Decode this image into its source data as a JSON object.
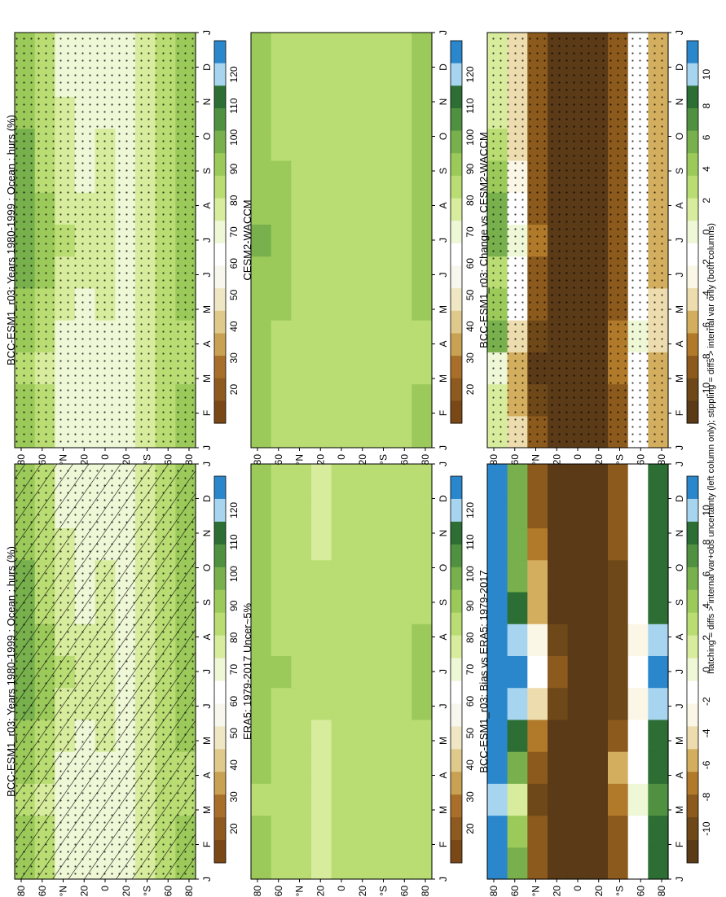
{
  "chart_data": [
    {
      "type": "heatmap",
      "title": "BCC-ESM1_r03: Years 1980-1999 : Ocean : hurs (%)",
      "x_ticks": [
        "J",
        "F",
        "M",
        "A",
        "M",
        "J",
        "J",
        "A",
        "S",
        "O",
        "N",
        "D",
        "J"
      ],
      "y_ticks": [
        "80",
        "60",
        "°N",
        "20",
        "0",
        "20",
        "°S",
        "60",
        "80"
      ],
      "colorbar_labels": [
        "120",
        "110",
        "100",
        "90",
        "80",
        "70",
        "60",
        "50",
        "40",
        "30",
        "20"
      ],
      "field": [
        [
          90,
          88,
          86,
          88,
          92,
          95,
          98,
          97,
          95,
          93,
          91,
          90,
          90
        ],
        [
          82,
          80,
          78,
          80,
          84,
          88,
          90,
          89,
          86,
          84,
          82,
          82,
          82
        ],
        [
          73,
          72,
          71,
          72,
          75,
          78,
          80,
          79,
          77,
          76,
          74,
          73,
          73
        ],
        [
          70,
          69,
          69,
          70,
          72,
          74,
          75,
          74,
          73,
          72,
          71,
          70,
          70
        ],
        [
          72,
          72,
          73,
          73,
          74,
          74,
          74,
          74,
          74,
          74,
          73,
          72,
          72
        ],
        [
          71,
          72,
          73,
          73,
          73,
          72,
          72,
          72,
          72,
          72,
          72,
          71,
          71
        ],
        [
          74,
          75,
          76,
          76,
          75,
          74,
          74,
          74,
          74,
          74,
          74,
          74,
          74
        ],
        [
          84,
          84,
          85,
          85,
          85,
          86,
          86,
          86,
          85,
          85,
          84,
          84,
          84
        ],
        [
          88,
          87,
          86,
          86,
          87,
          89,
          90,
          89,
          88,
          87,
          88,
          88,
          88
        ]
      ],
      "hatching": "diffs > internal var+obs uncertainty",
      "stippling": "diffs > internal var only"
    },
    {
      "type": "heatmap",
      "title": "BCC-ESM1_r03: Years 1980-1999 : Ocean : hurs (%)",
      "x_ticks": [
        "J",
        "F",
        "M",
        "A",
        "M",
        "J",
        "J",
        "A",
        "S",
        "O",
        "N",
        "D",
        "J"
      ],
      "y_ticks": [
        "80",
        "60",
        "°N",
        "20",
        "0",
        "20",
        "°S",
        "60",
        "80"
      ],
      "colorbar_labels": [
        "120",
        "110",
        "100",
        "90",
        "80",
        "70",
        "60",
        "50",
        "40",
        "30",
        "20"
      ],
      "field": [
        [
          90,
          88,
          86,
          88,
          92,
          95,
          98,
          97,
          95,
          93,
          91,
          90,
          90
        ],
        [
          82,
          80,
          78,
          80,
          84,
          88,
          90,
          89,
          86,
          84,
          82,
          82,
          82
        ],
        [
          73,
          72,
          71,
          72,
          75,
          78,
          80,
          79,
          77,
          76,
          74,
          73,
          73
        ],
        [
          70,
          69,
          69,
          70,
          72,
          74,
          75,
          74,
          73,
          72,
          71,
          70,
          70
        ],
        [
          72,
          72,
          73,
          73,
          74,
          74,
          74,
          74,
          74,
          74,
          73,
          72,
          72
        ],
        [
          71,
          72,
          73,
          73,
          73,
          72,
          72,
          72,
          72,
          72,
          72,
          71,
          71
        ],
        [
          74,
          75,
          76,
          76,
          75,
          74,
          74,
          74,
          74,
          74,
          74,
          74,
          74
        ],
        [
          84,
          84,
          85,
          85,
          85,
          86,
          86,
          86,
          85,
          85,
          84,
          84,
          84
        ],
        [
          88,
          87,
          86,
          86,
          87,
          89,
          90,
          89,
          88,
          87,
          88,
          88,
          88
        ]
      ],
      "stippling": "diffs > internal var only"
    },
    {
      "type": "heatmap",
      "title": "ERA5: 1979-2017 Uncer~5%",
      "x_ticks": [
        "J",
        "F",
        "M",
        "A",
        "M",
        "J",
        "J",
        "A",
        "S",
        "O",
        "N",
        "D",
        "J"
      ],
      "y_ticks": [
        "80",
        "60",
        "°N",
        "20",
        "0",
        "20",
        "°S",
        "60",
        "80"
      ],
      "colorbar_labels": [
        "120",
        "110",
        "100",
        "90",
        "80",
        "70",
        "60",
        "50",
        "40",
        "30",
        "20"
      ],
      "field": [
        [
          88,
          87,
          86,
          87,
          88,
          90,
          91,
          90,
          89,
          88,
          88,
          88,
          88
        ],
        [
          84,
          83,
          83,
          84,
          85,
          86,
          87,
          86,
          85,
          84,
          84,
          84,
          84
        ],
        [
          80,
          80,
          80,
          80,
          81,
          82,
          82,
          82,
          81,
          81,
          80,
          80,
          80
        ],
        [
          79,
          79,
          79,
          79,
          79,
          80,
          80,
          80,
          80,
          80,
          79,
          79,
          79
        ],
        [
          81,
          81,
          81,
          81,
          81,
          81,
          81,
          81,
          81,
          81,
          81,
          81,
          81
        ],
        [
          80,
          80,
          80,
          80,
          80,
          80,
          80,
          80,
          80,
          80,
          80,
          80,
          80
        ],
        [
          81,
          81,
          81,
          81,
          81,
          81,
          81,
          81,
          81,
          81,
          81,
          81,
          81
        ],
        [
          84,
          84,
          84,
          84,
          84,
          85,
          85,
          85,
          84,
          84,
          84,
          84,
          84
        ],
        [
          86,
          86,
          85,
          85,
          86,
          87,
          88,
          87,
          86,
          86,
          86,
          86,
          86
        ]
      ]
    },
    {
      "type": "heatmap",
      "title": "CESM2-WACCM",
      "x_ticks": [
        "J",
        "F",
        "M",
        "A",
        "M",
        "J",
        "J",
        "A",
        "S",
        "O",
        "N",
        "D",
        "J"
      ],
      "y_ticks": [
        "80",
        "60",
        "°N",
        "20",
        "0",
        "20",
        "°S",
        "60",
        "80"
      ],
      "colorbar_labels": [
        "120",
        "110",
        "100",
        "90",
        "80",
        "70",
        "60",
        "50",
        "40",
        "30",
        "20"
      ],
      "field": [
        [
          90,
          89,
          88,
          89,
          90,
          92,
          93,
          92,
          91,
          90,
          90,
          90,
          90
        ],
        [
          86,
          85,
          85,
          86,
          87,
          88,
          88,
          88,
          87,
          86,
          86,
          86,
          86
        ],
        [
          82,
          81,
          81,
          82,
          83,
          84,
          84,
          84,
          83,
          82,
          82,
          82,
          82
        ],
        [
          80,
          80,
          80,
          80,
          81,
          81,
          81,
          81,
          81,
          80,
          80,
          80,
          80
        ],
        [
          82,
          82,
          82,
          82,
          82,
          82,
          82,
          82,
          82,
          82,
          82,
          82,
          82
        ],
        [
          81,
          81,
          81,
          81,
          81,
          81,
          81,
          81,
          81,
          81,
          81,
          81,
          81
        ],
        [
          82,
          82,
          82,
          82,
          82,
          82,
          82,
          82,
          82,
          82,
          82,
          82,
          82
        ],
        [
          85,
          85,
          85,
          85,
          85,
          86,
          86,
          86,
          85,
          85,
          85,
          85,
          85
        ],
        [
          87,
          87,
          86,
          86,
          87,
          88,
          89,
          88,
          87,
          87,
          87,
          87,
          87
        ]
      ]
    },
    {
      "type": "heatmap",
      "title": "BCC-ESM1_r03: Bias vs ERA5: 1979-2017",
      "x_ticks": [
        "J",
        "F",
        "M",
        "A",
        "M",
        "J",
        "J",
        "A",
        "S",
        "O",
        "N",
        "D",
        "J"
      ],
      "y_ticks": [
        "80",
        "60",
        "°N",
        "20",
        "0",
        "20",
        "°S",
        "60",
        "80"
      ],
      "colorbar_labels": [
        "10",
        "8",
        "6",
        "4",
        "2",
        "0",
        "-2",
        "-4",
        "-6",
        "-8",
        "-10"
      ],
      "field": [
        [
          11,
          11,
          10,
          11,
          11,
          12,
          12,
          11,
          11,
          11,
          11,
          11,
          11
        ],
        [
          6,
          4,
          2,
          5,
          8,
          10,
          11,
          10,
          8,
          6,
          5,
          5,
          6
        ],
        [
          -8,
          -9,
          -10,
          -9,
          -7,
          -4,
          -2,
          -3,
          -5,
          -6,
          -7,
          -8,
          -8
        ],
        [
          -11,
          -11,
          -11,
          -11,
          -11,
          -10,
          -9,
          -10,
          -11,
          -11,
          -11,
          -11,
          -11
        ],
        [
          -11,
          -11,
          -11,
          -11,
          -11,
          -11,
          -11,
          -11,
          -11,
          -11,
          -11,
          -11,
          -11
        ],
        [
          -11,
          -11,
          -11,
          -11,
          -11,
          -11,
          -11,
          -11,
          -11,
          -11,
          -11,
          -11,
          -11
        ],
        [
          -9,
          -8,
          -7,
          -6,
          -8,
          -10,
          -10,
          -10,
          -10,
          -10,
          -9,
          -9,
          -9
        ],
        [
          -2,
          -1,
          0,
          -1,
          -2,
          -3,
          -2,
          -3,
          -2,
          -2,
          -1,
          -1,
          -2
        ],
        [
          9,
          8,
          7,
          8,
          9,
          10,
          11,
          10,
          9,
          9,
          9,
          9,
          9
        ]
      ]
    },
    {
      "type": "heatmap",
      "title": "BCC-ESM1_r03: Change vs CESM2-WACCM",
      "x_ticks": [
        "J",
        "F",
        "M",
        "A",
        "M",
        "J",
        "J",
        "A",
        "S",
        "O",
        "N",
        "D",
        "J"
      ],
      "y_ticks": [
        "80",
        "60",
        "°N",
        "20",
        "0",
        "20",
        "°S",
        "60",
        "80"
      ],
      "colorbar_labels": [
        "10",
        "8",
        "6",
        "4",
        "2",
        "0",
        "-2",
        "-4",
        "-6",
        "-8",
        "-10"
      ],
      "field": [
        [
          2,
          1,
          0,
          6,
          4,
          3,
          5,
          6,
          4,
          3,
          2,
          2,
          2
        ],
        [
          -4,
          -5,
          -6,
          -4,
          -2,
          -1,
          0,
          -1,
          -3,
          -4,
          -4,
          -4,
          -4
        ],
        [
          -9,
          -10,
          -11,
          -10,
          -9,
          -8,
          -7,
          -8,
          -9,
          -9,
          -9,
          -9,
          -9
        ],
        [
          -11,
          -11,
          -11,
          -11,
          -11,
          -11,
          -11,
          -11,
          -11,
          -11,
          -11,
          -11,
          -11
        ],
        [
          -11,
          -11,
          -11,
          -11,
          -11,
          -11,
          -11,
          -11,
          -11,
          -11,
          -11,
          -11,
          -11
        ],
        [
          -11,
          -11,
          -11,
          -11,
          -11,
          -11,
          -11,
          -11,
          -11,
          -11,
          -11,
          -11,
          -11
        ],
        [
          -9,
          -8,
          -7,
          -7,
          -8,
          -9,
          -9,
          -9,
          -9,
          -9,
          -9,
          -9,
          -9
        ],
        [
          -2,
          -2,
          -1,
          0,
          -1,
          -2,
          -2,
          -2,
          -2,
          -2,
          -2,
          -2,
          -2
        ],
        [
          -5,
          -5,
          -5,
          -4,
          -4,
          -5,
          -5,
          -5,
          -5,
          -5,
          -5,
          -5,
          -5
        ]
      ],
      "stippling": "diffs > internal var only"
    }
  ],
  "footer": "hatching = diffs > internal var+obs uncertainty (left column only); stippling = diffs > internal var only (both columns)",
  "colors": {
    "abs_scale": [
      "#7a4816",
      "#8e5a1f",
      "#a86f2a",
      "#c9a152",
      "#dfc98b",
      "#efe6c4",
      "#f8f7ee",
      "#ffffff",
      "#eef7d6",
      "#d7ec9c",
      "#b9dc73",
      "#9bca5a",
      "#77b04c",
      "#4f9140",
      "#2c6e33",
      "#a7d5ef",
      "#2b87cc"
    ],
    "diff_scale": [
      "#5a3a17",
      "#6e4818",
      "#8b5a1c",
      "#b07a2a",
      "#d4ae5f",
      "#ecdcae",
      "#fbf7e6",
      "#ffffff",
      "#eef7d6",
      "#d7ec9c",
      "#b9dc73",
      "#9bca5a",
      "#77b04c",
      "#4f9140",
      "#2c6e33",
      "#a7d5ef",
      "#2b87cc"
    ]
  }
}
